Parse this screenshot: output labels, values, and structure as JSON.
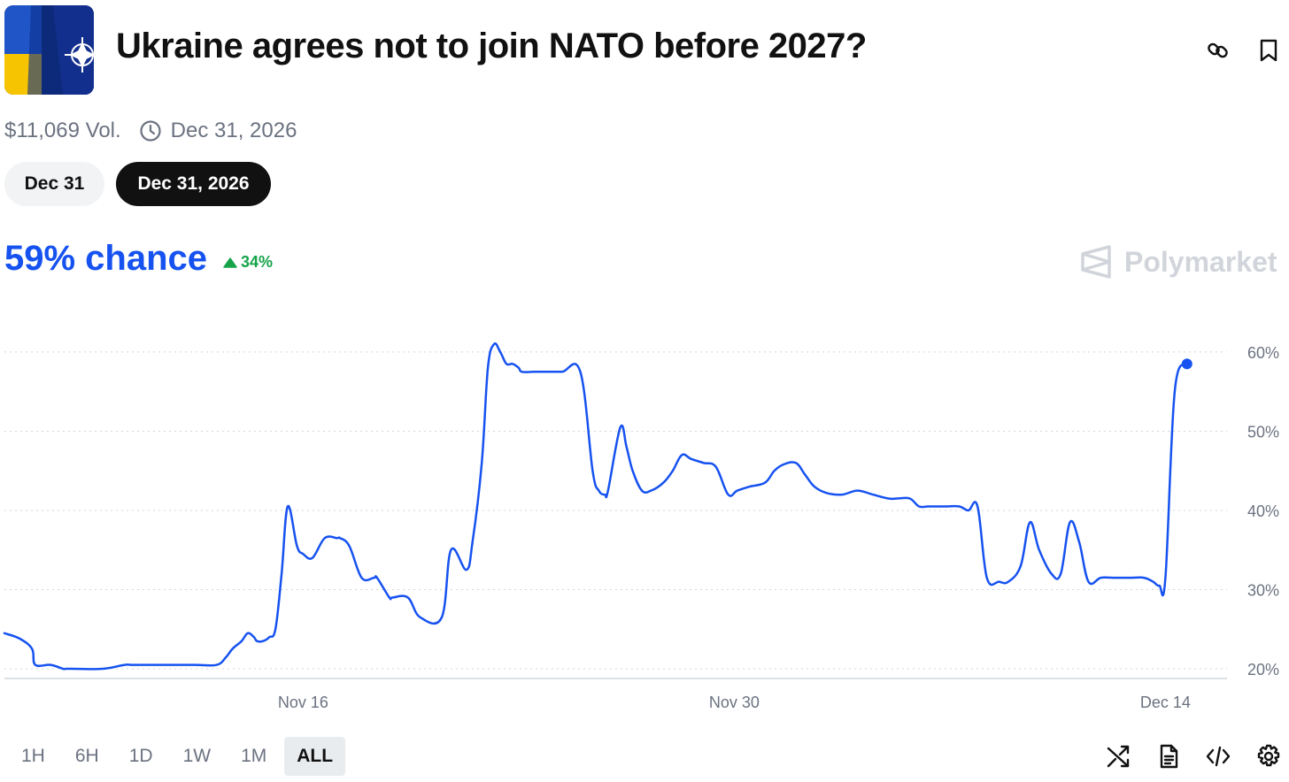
{
  "header": {
    "title": "Ukraine agrees not to join NATO before 2027?",
    "thumbnail_icon": "ukraine-nato-flags-image",
    "link_icon": "link-icon",
    "bookmark_icon": "bookmark-icon"
  },
  "meta": {
    "volume": "$11,069 Vol.",
    "end_date": "Dec 31, 2026",
    "clock_icon": "clock-icon"
  },
  "date_pills": [
    {
      "label": "Dec 31",
      "active": false
    },
    {
      "label": "Dec 31, 2026",
      "active": true
    }
  ],
  "summary": {
    "chance": "59% chance",
    "change": "34%",
    "change_color": "#16a34a"
  },
  "brand": {
    "name": "Polymarket",
    "icon": "polymarket-logo"
  },
  "time_ranges": [
    "1H",
    "6H",
    "1D",
    "1W",
    "1M",
    "ALL"
  ],
  "active_range": "ALL",
  "toolbar": [
    "shuffle-icon",
    "document-icon",
    "code-icon",
    "settings-icon"
  ],
  "colors": {
    "accent": "#1652f0",
    "up": "#16a34a",
    "grid": "#d1d5db",
    "axis_text": "#6b7280"
  },
  "chart_data": {
    "type": "line",
    "title": "",
    "xlabel": "",
    "ylabel": "",
    "x_ticks": [
      {
        "label": "Nov 16",
        "day": 16
      },
      {
        "label": "Nov 30",
        "day": 30
      },
      {
        "label": "Dec 14",
        "day": 44
      }
    ],
    "y_ticks": [
      20,
      30,
      40,
      50,
      60
    ],
    "y_tick_labels": [
      "20%",
      "30%",
      "40%",
      "50%",
      "60%"
    ],
    "ylim": [
      19,
      62
    ],
    "xlim": [
      6.3,
      46.0
    ],
    "grid": true,
    "series": [
      {
        "color": "#1652f0",
        "x": [
          6.3,
          6.8,
          7.2,
          7.3,
          7.8,
          8.2,
          8.3,
          8.5,
          9.5,
          10.2,
          10.5,
          11.5,
          12.5,
          13.2,
          13.5,
          13.7,
          14.0,
          14.2,
          14.4,
          14.5,
          14.7,
          14.9,
          15.1,
          15.3,
          15.5,
          15.8,
          16.0,
          16.3,
          16.7,
          17.1,
          17.2,
          17.5,
          17.9,
          18.3,
          18.4,
          18.8,
          18.9,
          19.4,
          19.8,
          20.5,
          20.8,
          21.3,
          21.5,
          21.8,
          22.0,
          22.2,
          22.4,
          22.6,
          22.8,
          23.0,
          23.1,
          23.5,
          23.8,
          24.4,
          25.0,
          25.4,
          25.6,
          25.8,
          25.9,
          26.3,
          26.5,
          26.7,
          27.0,
          27.3,
          27.7,
          28.0,
          28.3,
          28.6,
          29.0,
          29.4,
          29.8,
          30.1,
          30.5,
          31.0,
          31.3,
          31.6,
          32.0,
          32.3,
          32.6,
          33.0,
          33.5,
          34.0,
          34.5,
          35.0,
          35.3,
          35.7,
          36.0,
          36.3,
          36.8,
          37.3,
          37.6,
          37.9,
          38.2,
          38.6,
          38.9,
          39.3,
          39.6,
          39.9,
          40.3,
          40.6,
          40.9,
          41.2,
          41.5,
          41.9,
          42.3,
          42.9,
          43.3,
          43.6,
          43.8,
          44.0,
          44.3,
          44.7
        ],
        "y": [
          24.5,
          23.8,
          22.5,
          20.5,
          20.5,
          20.0,
          20.0,
          20.0,
          20.0,
          20.5,
          20.5,
          20.5,
          20.5,
          20.5,
          21.5,
          22.5,
          23.5,
          24.5,
          24.0,
          23.5,
          23.5,
          24.0,
          25.0,
          32.0,
          40.5,
          35.5,
          34.5,
          34.0,
          36.5,
          36.5,
          36.5,
          35.5,
          31.5,
          31.5,
          31.5,
          29.0,
          29.0,
          29.0,
          26.5,
          26.5,
          35.0,
          32.5,
          36.0,
          46.0,
          58.0,
          61.0,
          60.0,
          58.5,
          58.5,
          58.0,
          57.5,
          57.5,
          57.5,
          57.5,
          57.5,
          45.0,
          42.5,
          42.0,
          42.5,
          50.5,
          48.0,
          45.0,
          42.5,
          42.5,
          43.5,
          45.0,
          47.0,
          46.5,
          46.0,
          45.5,
          42.0,
          42.5,
          43.0,
          43.5,
          45.0,
          45.8,
          46.0,
          44.5,
          43.0,
          42.2,
          42.0,
          42.5,
          42.0,
          41.5,
          41.5,
          41.5,
          40.5,
          40.5,
          40.5,
          40.5,
          40.0,
          40.5,
          31.5,
          31.0,
          31.0,
          33.0,
          38.5,
          35.0,
          32.0,
          32.0,
          38.5,
          36.0,
          31.0,
          31.5,
          31.5,
          31.5,
          31.5,
          31.0,
          30.5,
          31.5,
          55.0,
          58.5
        ]
      }
    ]
  }
}
